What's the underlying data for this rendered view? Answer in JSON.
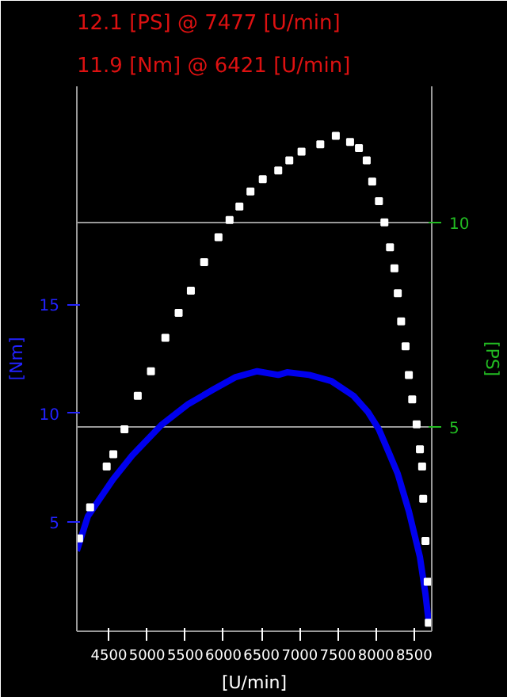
{
  "chart_data": {
    "type": "line",
    "annotations": [
      "12.1 [PS] @ 7477 [U/min]",
      "11.9 [Nm] @ 6421 [U/min]"
    ],
    "xlabel": "[U/min]",
    "ylabel": "[PS]",
    "y2label": "[Nm]",
    "xlim": [
      4080,
      8730
    ],
    "xticks": [
      4500,
      5000,
      5500,
      6000,
      6500,
      7000,
      7500,
      8000,
      8500
    ],
    "ylim": [
      0,
      13.33
    ],
    "yticks": [
      5,
      10
    ],
    "y2lim": [
      0,
      25
    ],
    "y2ticks": [
      5,
      10,
      15
    ],
    "grid": "y",
    "series": [
      {
        "type": "scatter",
        "marker": "square",
        "color": "#ffffff",
        "x": [
          4110,
          4254,
          4471,
          4558,
          4704,
          4878,
          5051,
          5240,
          5414,
          5574,
          5748,
          5936,
          6081,
          6210,
          6355,
          6516,
          6719,
          6864,
          7024,
          7270,
          7473,
          7660,
          7776,
          7878,
          7950,
          8038,
          8110,
          8183,
          8241,
          8285,
          8329,
          8387,
          8430,
          8474,
          8532,
          8575,
          8604,
          8618,
          8648,
          8677,
          8691
        ],
        "values": [
          2.27,
          3.03,
          4.03,
          4.33,
          4.94,
          5.76,
          6.36,
          7.18,
          7.79,
          8.33,
          9.03,
          9.64,
          10.06,
          10.39,
          10.76,
          11.06,
          11.27,
          11.52,
          11.73,
          11.91,
          12.12,
          11.97,
          11.82,
          11.52,
          11.0,
          10.52,
          10.0,
          9.39,
          8.88,
          8.27,
          7.58,
          6.97,
          6.27,
          5.67,
          5.06,
          4.45,
          4.03,
          3.24,
          2.21,
          1.21,
          0.21
        ]
      },
      {
        "axis": "y2",
        "color": "#0000ee",
        "x": [
          4080,
          4225,
          4558,
          4805,
          5196,
          5530,
          5863,
          6153,
          6443,
          6719,
          6835,
          7125,
          7415,
          7705,
          7894,
          8038,
          8183,
          8285,
          8430,
          8575,
          8648,
          8691
        ],
        "values": [
          3.69,
          5.28,
          6.99,
          8.07,
          9.49,
          10.4,
          11.08,
          11.65,
          11.93,
          11.76,
          11.88,
          11.76,
          11.48,
          10.8,
          10.06,
          9.26,
          8.07,
          7.22,
          5.51,
          3.41,
          1.7,
          0.4
        ]
      }
    ]
  }
}
